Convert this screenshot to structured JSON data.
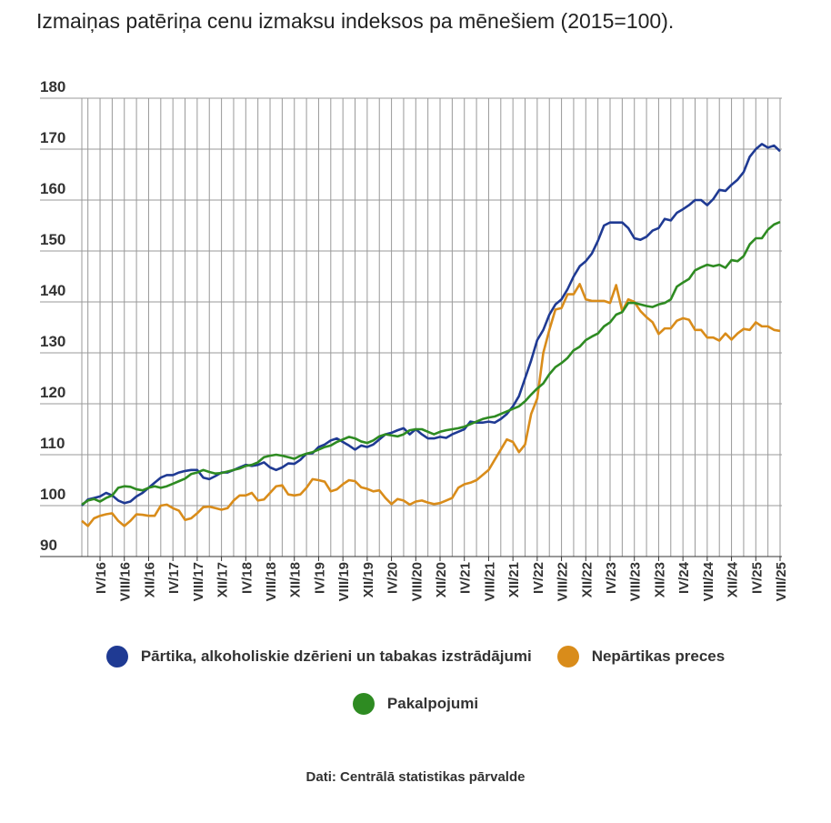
{
  "chart_data": {
    "type": "line",
    "title": "Izmaiņas patēriņa cenu izmaksu indeksos pa mēnešiem (2015=100).",
    "source": "Dati: Centrālā statistikas pārvalde",
    "categories": [
      null,
      null,
      null,
      "IV/16",
      null,
      null,
      null,
      "VIII/16",
      null,
      null,
      null,
      "XII/16",
      null,
      null,
      null,
      "IV/17",
      null,
      null,
      null,
      "VIII/17",
      null,
      null,
      null,
      "XII/17",
      null,
      null,
      null,
      "IV/18",
      null,
      null,
      null,
      "VIII/18",
      null,
      null,
      null,
      "XII/18",
      null,
      null,
      null,
      "IV/19",
      null,
      null,
      null,
      "VIII/19",
      null,
      null,
      null,
      "XII/19",
      null,
      null,
      null,
      "IV/20",
      null,
      null,
      null,
      "VIII/20",
      null,
      null,
      null,
      "XII/20",
      null,
      null,
      null,
      "IV/21",
      null,
      null,
      null,
      "VIII/21",
      null,
      null,
      null,
      "XII/21",
      null,
      null,
      null,
      "IV/22",
      null,
      null,
      null,
      "VIII/22",
      null,
      null,
      null,
      "XII/22",
      null,
      null,
      null,
      "IV/23",
      null,
      null,
      null,
      "VIII/23",
      null,
      null,
      null,
      "XII/23",
      null,
      null,
      null,
      "IV/24",
      null,
      null,
      null,
      "VIII/24",
      null,
      null,
      null,
      "XII/24",
      null,
      null,
      null,
      "IV/25",
      null,
      null,
      null,
      "VIII/25"
    ],
    "ylim": [
      90,
      180
    ],
    "yticks": [
      90,
      100,
      110,
      120,
      130,
      140,
      150,
      160,
      170,
      180
    ],
    "grid": true,
    "series": [
      {
        "name": "Pārtika, alkoholiskie dzērieni un tabakas izstrādājumi",
        "color": "#1f3a93",
        "values": [
          100,
          101.2,
          101.5,
          101.8,
          102.5,
          102,
          101,
          100.5,
          100.8,
          101.8,
          102.5,
          103.5,
          104.5,
          105.5,
          106,
          106,
          106.5,
          106.8,
          107,
          107,
          105.5,
          105.2,
          105.8,
          106.5,
          106.5,
          107,
          107.5,
          108,
          107.8,
          108,
          108.5,
          107.5,
          107,
          107.5,
          108.3,
          108.2,
          109,
          110.2,
          110.3,
          111.5,
          112,
          112.8,
          113.2,
          112.5,
          111.8,
          111,
          111.8,
          111.5,
          112,
          113,
          114,
          114.3,
          114.8,
          115.2,
          114,
          115,
          114,
          113.2,
          113.2,
          113.5,
          113.3,
          114,
          114.5,
          115,
          116.5,
          116.3,
          116.3,
          116.5,
          116.3,
          117,
          118,
          119.5,
          121.5,
          125,
          128.5,
          132.5,
          134.5,
          137.5,
          139.5,
          140.5,
          142.5,
          145,
          147,
          148,
          149.5,
          152,
          155,
          155.6,
          155.6,
          155.6,
          154.5,
          152.5,
          152.2,
          152.8,
          154,
          154.5,
          156.3,
          156,
          157.5,
          158.2,
          159,
          160,
          160,
          159,
          160.2,
          162,
          161.8,
          163,
          164,
          165.5,
          168.5,
          170,
          171,
          170.3,
          170.7,
          169.6
        ]
      },
      {
        "name": "Nepārtikas preces",
        "color": "#d98c1a",
        "values": [
          97,
          96,
          97.5,
          98,
          98.3,
          98.5,
          97,
          96,
          97,
          98.3,
          98.2,
          98,
          98,
          100,
          100.2,
          99.5,
          99,
          97.2,
          97.5,
          98.5,
          99.7,
          99.8,
          99.5,
          99.2,
          99.5,
          101,
          102,
          102,
          102.5,
          101,
          101.2,
          102.5,
          103.8,
          104,
          102.2,
          102,
          102.2,
          103.5,
          105.2,
          105,
          104.7,
          102.8,
          103.2,
          104.2,
          105,
          104.8,
          103.6,
          103.3,
          102.8,
          103,
          101.5,
          100.3,
          101.3,
          101,
          100.2,
          100.8,
          101,
          100.6,
          100.3,
          100.5,
          101,
          101.5,
          103.5,
          104.2,
          104.5,
          105,
          106,
          107,
          109,
          111,
          113,
          112.5,
          110.5,
          112,
          118,
          121,
          130,
          134.5,
          138.5,
          138.8,
          141.5,
          141.5,
          143.5,
          140.5,
          140.2,
          140.2,
          140.2,
          139.8,
          143.3,
          138.2,
          140.5,
          140,
          138.2,
          137,
          136,
          133.7,
          134.8,
          134.8,
          136.3,
          136.8,
          136.5,
          134.5,
          134.5,
          133,
          133,
          132.4,
          133.8,
          132.6,
          133.8,
          134.7,
          134.5,
          136,
          135.2,
          135.2,
          134.5,
          134.3
        ]
      },
      {
        "name": "Pakalpojumi",
        "color": "#2e8b22",
        "values": [
          100.2,
          101,
          101.3,
          100.8,
          101.5,
          102,
          103.5,
          103.8,
          103.7,
          103.2,
          103,
          103.5,
          103.8,
          103.5,
          103.8,
          104.3,
          104.8,
          105.3,
          106.2,
          106.5,
          107,
          106.6,
          106.3,
          106.4,
          106.7,
          107,
          107.3,
          107.8,
          108,
          108.5,
          109.5,
          109.8,
          110,
          109.8,
          109.5,
          109.2,
          109.8,
          110.2,
          110.5,
          111,
          111.5,
          111.8,
          112.5,
          113,
          113.5,
          113.2,
          112.6,
          112.3,
          112.8,
          113.6,
          114,
          113.8,
          113.6,
          114,
          114.8,
          115,
          115,
          114.5,
          114,
          114.5,
          114.8,
          115,
          115.2,
          115.5,
          116,
          116.5,
          117,
          117.3,
          117.5,
          118,
          118.5,
          119,
          119.5,
          120.5,
          121.8,
          123,
          124,
          125.8,
          127.2,
          128,
          129,
          130.5,
          131.2,
          132.5,
          133.2,
          133.8,
          135.2,
          136,
          137.5,
          138,
          139.8,
          139.8,
          139.5,
          139.2,
          139,
          139.5,
          139.8,
          140.5,
          143,
          143.8,
          144.5,
          146.2,
          146.8,
          147.3,
          147,
          147.3,
          146.7,
          148.2,
          148,
          149,
          151.3,
          152.5,
          152.5,
          154.2,
          155.2,
          155.7
        ]
      }
    ]
  }
}
